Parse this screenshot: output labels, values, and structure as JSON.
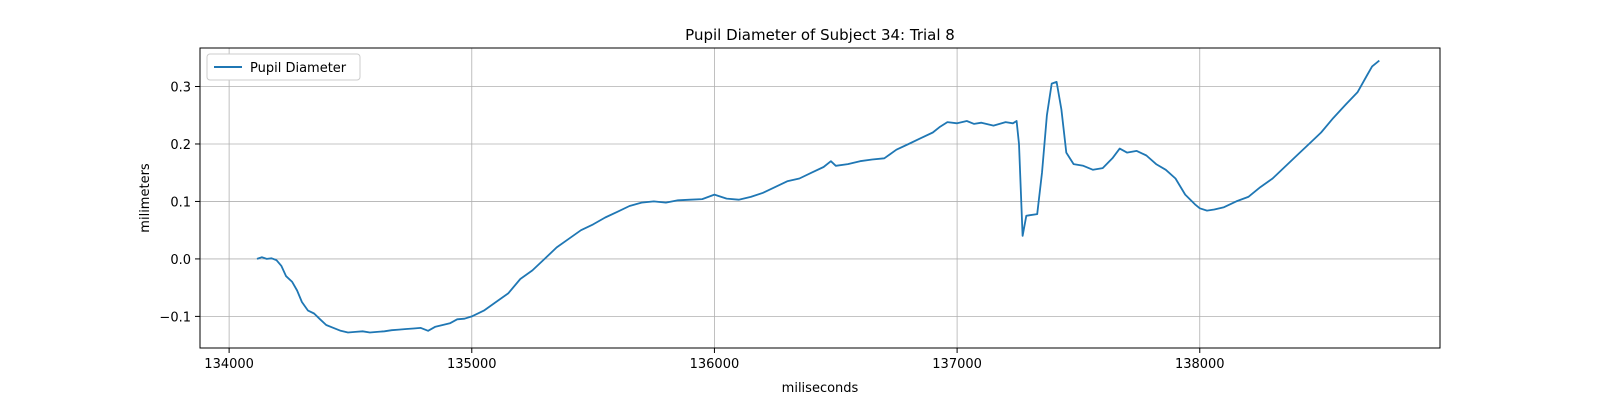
{
  "chart_data": {
    "type": "line",
    "title": "Pupil Diameter of Subject 34: Trial 8",
    "xlabel": "miliseconds",
    "ylabel": "milimeters",
    "xlim": [
      133880,
      138990
    ],
    "ylim": [
      -0.155,
      0.367
    ],
    "xticks": [
      134000,
      135000,
      136000,
      137000,
      138000
    ],
    "xtick_labels": [
      "134000",
      "135000",
      "136000",
      "137000",
      "138000"
    ],
    "yticks": [
      -0.1,
      0.0,
      0.1,
      0.2,
      0.3
    ],
    "ytick_labels": [
      "−0.1",
      "0.0",
      "0.1",
      "0.2",
      "0.3"
    ],
    "grid": true,
    "legend": {
      "position": "upper-left"
    },
    "series": [
      {
        "name": "Pupil Diameter",
        "color": "#1f77b4",
        "x": [
          134115,
          134135,
          134155,
          134175,
          134195,
          134215,
          134235,
          134260,
          134280,
          134300,
          134325,
          134350,
          134375,
          134400,
          134430,
          134460,
          134490,
          134520,
          134550,
          134580,
          134610,
          134640,
          134670,
          134700,
          134730,
          134760,
          134790,
          134820,
          134850,
          134880,
          134910,
          134940,
          134970,
          135000,
          135050,
          135100,
          135150,
          135200,
          135250,
          135300,
          135350,
          135400,
          135450,
          135500,
          135550,
          135600,
          135650,
          135700,
          135750,
          135800,
          135850,
          135900,
          135950,
          136000,
          136050,
          136100,
          136150,
          136200,
          136250,
          136300,
          136350,
          136400,
          136450,
          136480,
          136500,
          136550,
          136600,
          136650,
          136700,
          136750,
          136800,
          136850,
          136900,
          136930,
          136960,
          137000,
          137040,
          137070,
          137100,
          137150,
          137200,
          137230,
          137245,
          137255,
          137270,
          137285,
          137300,
          137330,
          137350,
          137370,
          137390,
          137410,
          137430,
          137450,
          137480,
          137520,
          137560,
          137600,
          137640,
          137670,
          137700,
          137740,
          137780,
          137820,
          137860,
          137900,
          137940,
          137980,
          138000,
          138030,
          138060,
          138100,
          138150,
          138200,
          138250,
          138300,
          138350,
          138400,
          138450,
          138500,
          138550,
          138600,
          138650,
          138690,
          138710,
          138740
        ],
        "values": [
          0.0,
          0.003,
          0.0,
          0.001,
          -0.002,
          -0.012,
          -0.03,
          -0.04,
          -0.055,
          -0.075,
          -0.09,
          -0.095,
          -0.105,
          -0.115,
          -0.12,
          -0.125,
          -0.128,
          -0.127,
          -0.126,
          -0.128,
          -0.127,
          -0.126,
          -0.124,
          -0.123,
          -0.122,
          -0.121,
          -0.12,
          -0.125,
          -0.118,
          -0.115,
          -0.112,
          -0.105,
          -0.104,
          -0.1,
          -0.09,
          -0.075,
          -0.06,
          -0.035,
          -0.02,
          0.0,
          0.02,
          0.035,
          0.05,
          0.06,
          0.072,
          0.082,
          0.092,
          0.098,
          0.1,
          0.098,
          0.102,
          0.103,
          0.104,
          0.112,
          0.105,
          0.103,
          0.108,
          0.115,
          0.125,
          0.135,
          0.14,
          0.15,
          0.16,
          0.17,
          0.162,
          0.165,
          0.17,
          0.173,
          0.175,
          0.19,
          0.2,
          0.21,
          0.22,
          0.23,
          0.238,
          0.236,
          0.24,
          0.235,
          0.237,
          0.232,
          0.238,
          0.236,
          0.24,
          0.2,
          0.04,
          0.075,
          0.076,
          0.078,
          0.15,
          0.25,
          0.305,
          0.308,
          0.26,
          0.185,
          0.165,
          0.162,
          0.155,
          0.158,
          0.175,
          0.192,
          0.185,
          0.188,
          0.18,
          0.165,
          0.155,
          0.14,
          0.112,
          0.095,
          0.088,
          0.084,
          0.086,
          0.09,
          0.1,
          0.108,
          0.125,
          0.14,
          0.16,
          0.18,
          0.2,
          0.22,
          0.245,
          0.268,
          0.29,
          0.32,
          0.335,
          0.345
        ]
      }
    ]
  }
}
